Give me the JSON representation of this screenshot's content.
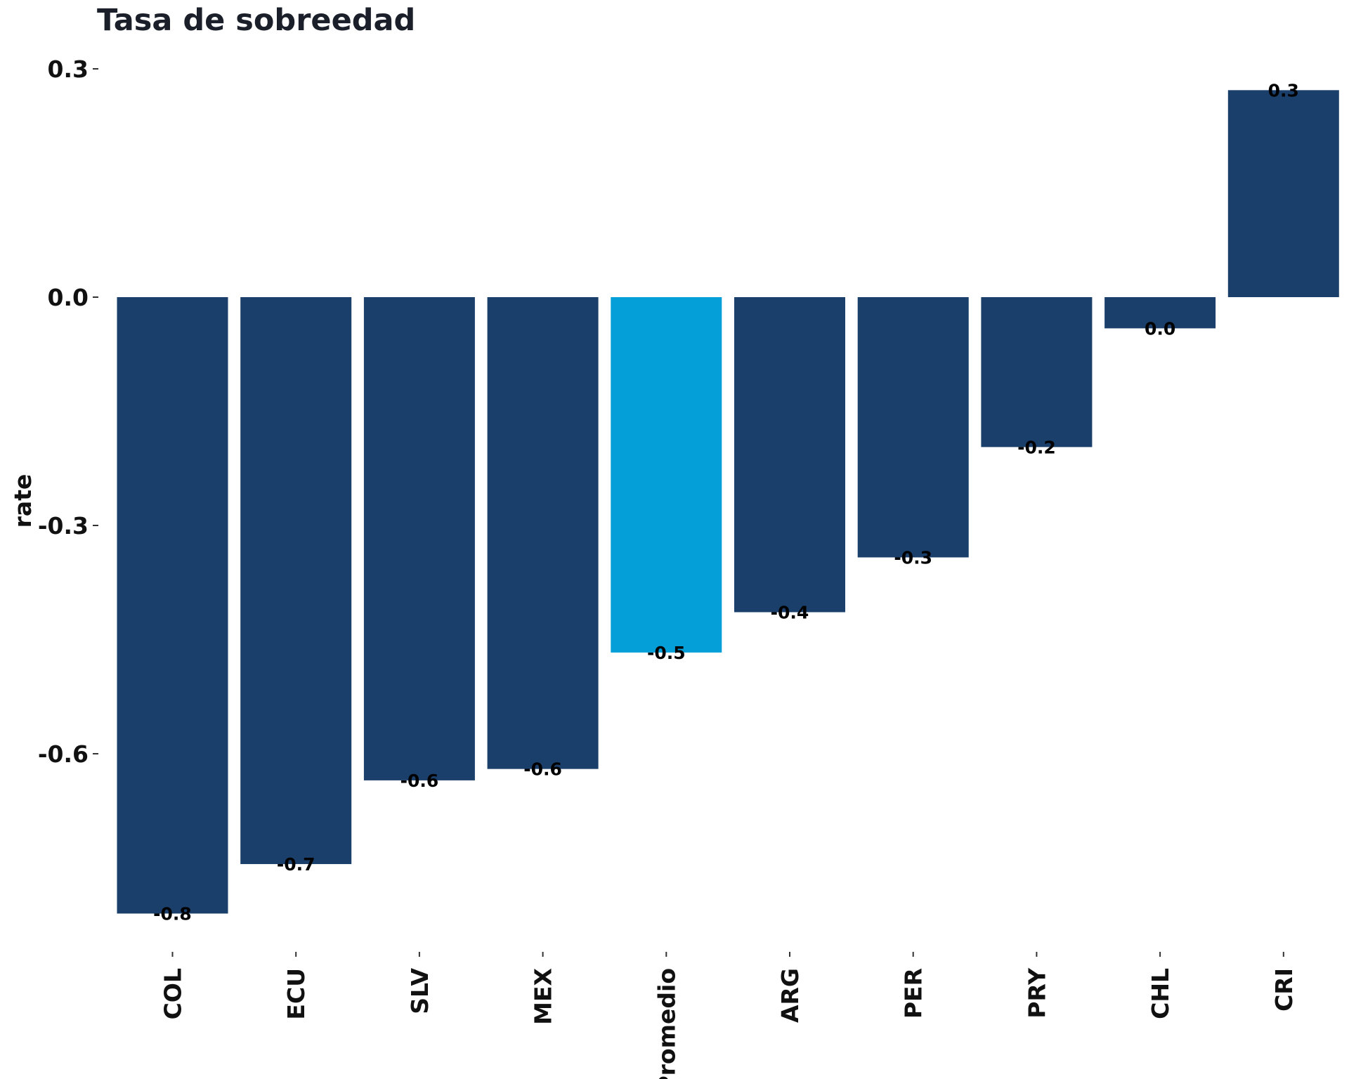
{
  "chart_data": {
    "type": "bar",
    "title": "Tasa de sobreedad",
    "xlabel": "",
    "ylabel": "rate",
    "ylim": [
      -0.85,
      0.3
    ],
    "yticks": [
      "0.3",
      "0.0",
      "-0.3",
      "-0.6"
    ],
    "ytick_values": [
      0.3,
      0.0,
      -0.3,
      -0.6
    ],
    "categories": [
      "COL",
      "ECU",
      "SLV",
      "MEX",
      "Promedio",
      "ARG",
      "PER",
      "PRY",
      "CHL",
      "CRI"
    ],
    "values": [
      -0.81,
      -0.745,
      -0.635,
      -0.62,
      -0.467,
      -0.414,
      -0.342,
      -0.197,
      -0.041,
      0.272
    ],
    "data_labels": [
      "-0.8",
      "-0.7",
      "-0.6",
      "-0.6",
      "-0.5",
      "-0.4",
      "-0.3",
      "-0.2",
      "0.0",
      "0.3"
    ],
    "highlight": "Promedio",
    "colors": {
      "bar": "#1b3f6b",
      "highlight": "#049fd9",
      "background": "#ffffff"
    },
    "grid": false,
    "legend": "none"
  }
}
